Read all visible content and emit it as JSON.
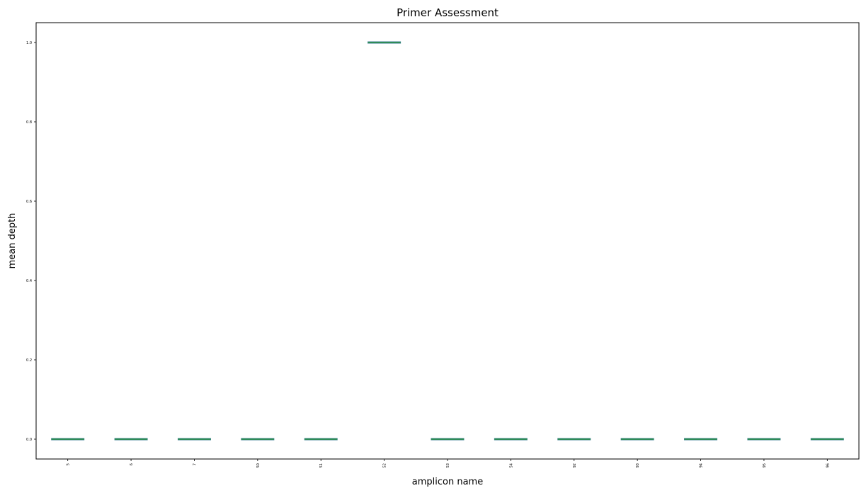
{
  "chart_data": {
    "type": "box",
    "title": "Primer Assessment",
    "xlabel": "amplicon name",
    "ylabel": "mean depth",
    "categories": [
      "5",
      "6",
      "7",
      "50",
      "51",
      "52",
      "53",
      "54",
      "92",
      "93",
      "94",
      "95",
      "96"
    ],
    "values": [
      0,
      0,
      0,
      0,
      0,
      1,
      0,
      0,
      0,
      0,
      0,
      0,
      0
    ],
    "ylim": [
      -0.05,
      1.05
    ],
    "yticks": [
      0.0,
      0.2,
      0.4,
      0.6,
      0.8,
      1.0
    ],
    "ytick_labels": [
      "0.0",
      "0.2",
      "0.4",
      "0.6",
      "0.8",
      "1.0"
    ],
    "box_color": "#2e8b57",
    "grid": false
  }
}
